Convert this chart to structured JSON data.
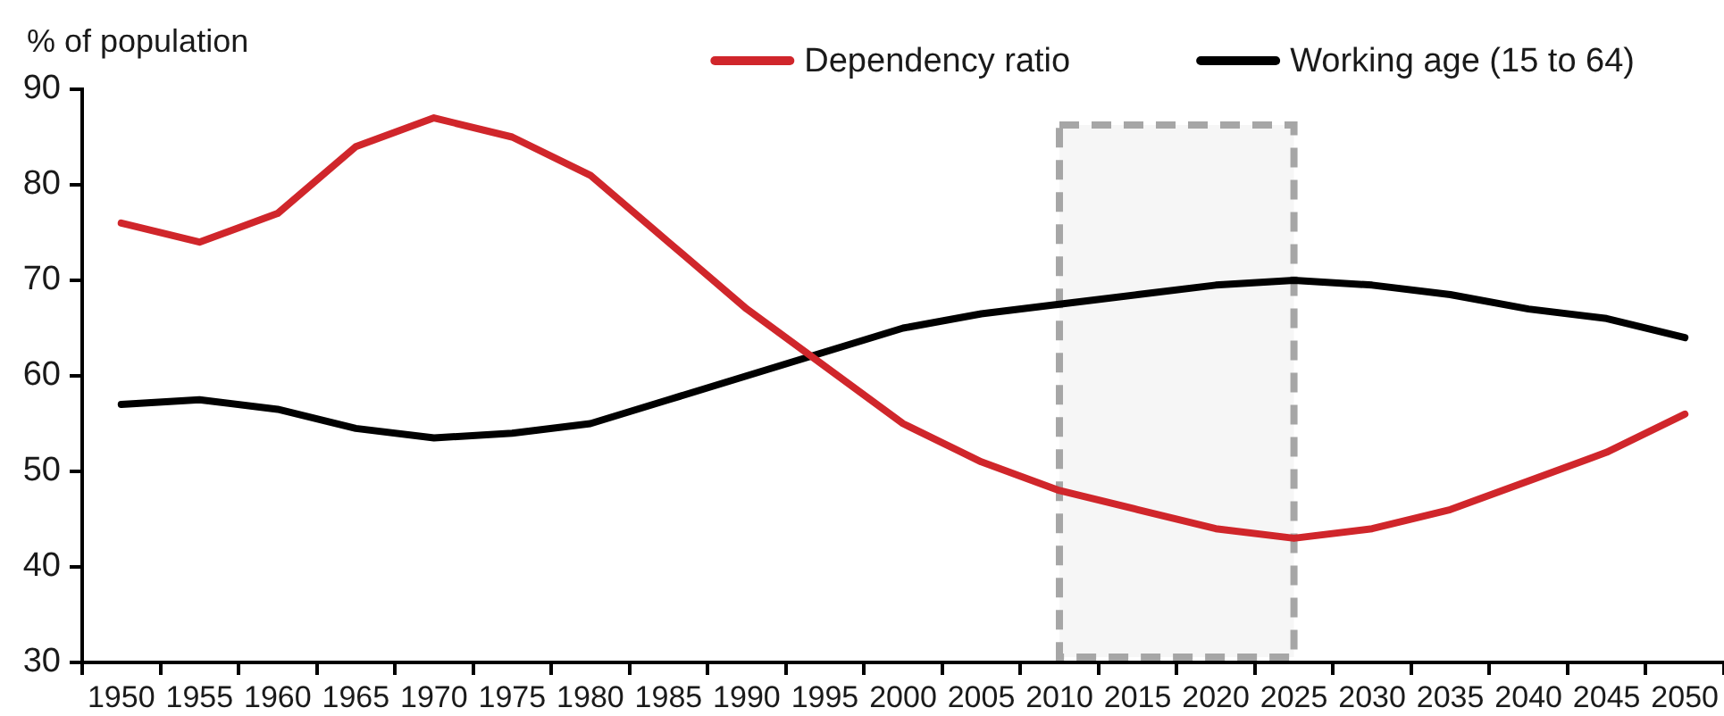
{
  "chart_data": {
    "type": "line",
    "ylabel": "% of population",
    "categories": [
      "1950",
      "1955",
      "1960",
      "1965",
      "1970",
      "1975",
      "1980",
      "1985",
      "1990",
      "1995",
      "2000",
      "2005",
      "2010",
      "2015",
      "2020",
      "2025",
      "2030",
      "2035",
      "2040",
      "2045",
      "2050"
    ],
    "series": [
      {
        "name": "Dependency ratio",
        "color": "#d0262b",
        "values": [
          76,
          74,
          77,
          84,
          87,
          85,
          81,
          74,
          67,
          61,
          55,
          51,
          48,
          46,
          44,
          43,
          44,
          46,
          49,
          52,
          56
        ]
      },
      {
        "name": "Working age (15 to 64)",
        "color": "#000000",
        "values": [
          57,
          57.5,
          56.5,
          54.5,
          53.5,
          54,
          55,
          57.5,
          60,
          62.5,
          65,
          66.5,
          67.5,
          68.5,
          69.5,
          70,
          69.5,
          68.5,
          67,
          66,
          64
        ]
      }
    ],
    "ylim": [
      30,
      90
    ],
    "yticks": [
      30,
      40,
      50,
      60,
      70,
      80,
      90
    ],
    "grid": false,
    "legend": "top",
    "marker": "none",
    "line_style": "solid",
    "bands": [
      {
        "axis": "x",
        "from": "2010",
        "to": "2025",
        "color": "#a6a6a6"
      }
    ]
  }
}
